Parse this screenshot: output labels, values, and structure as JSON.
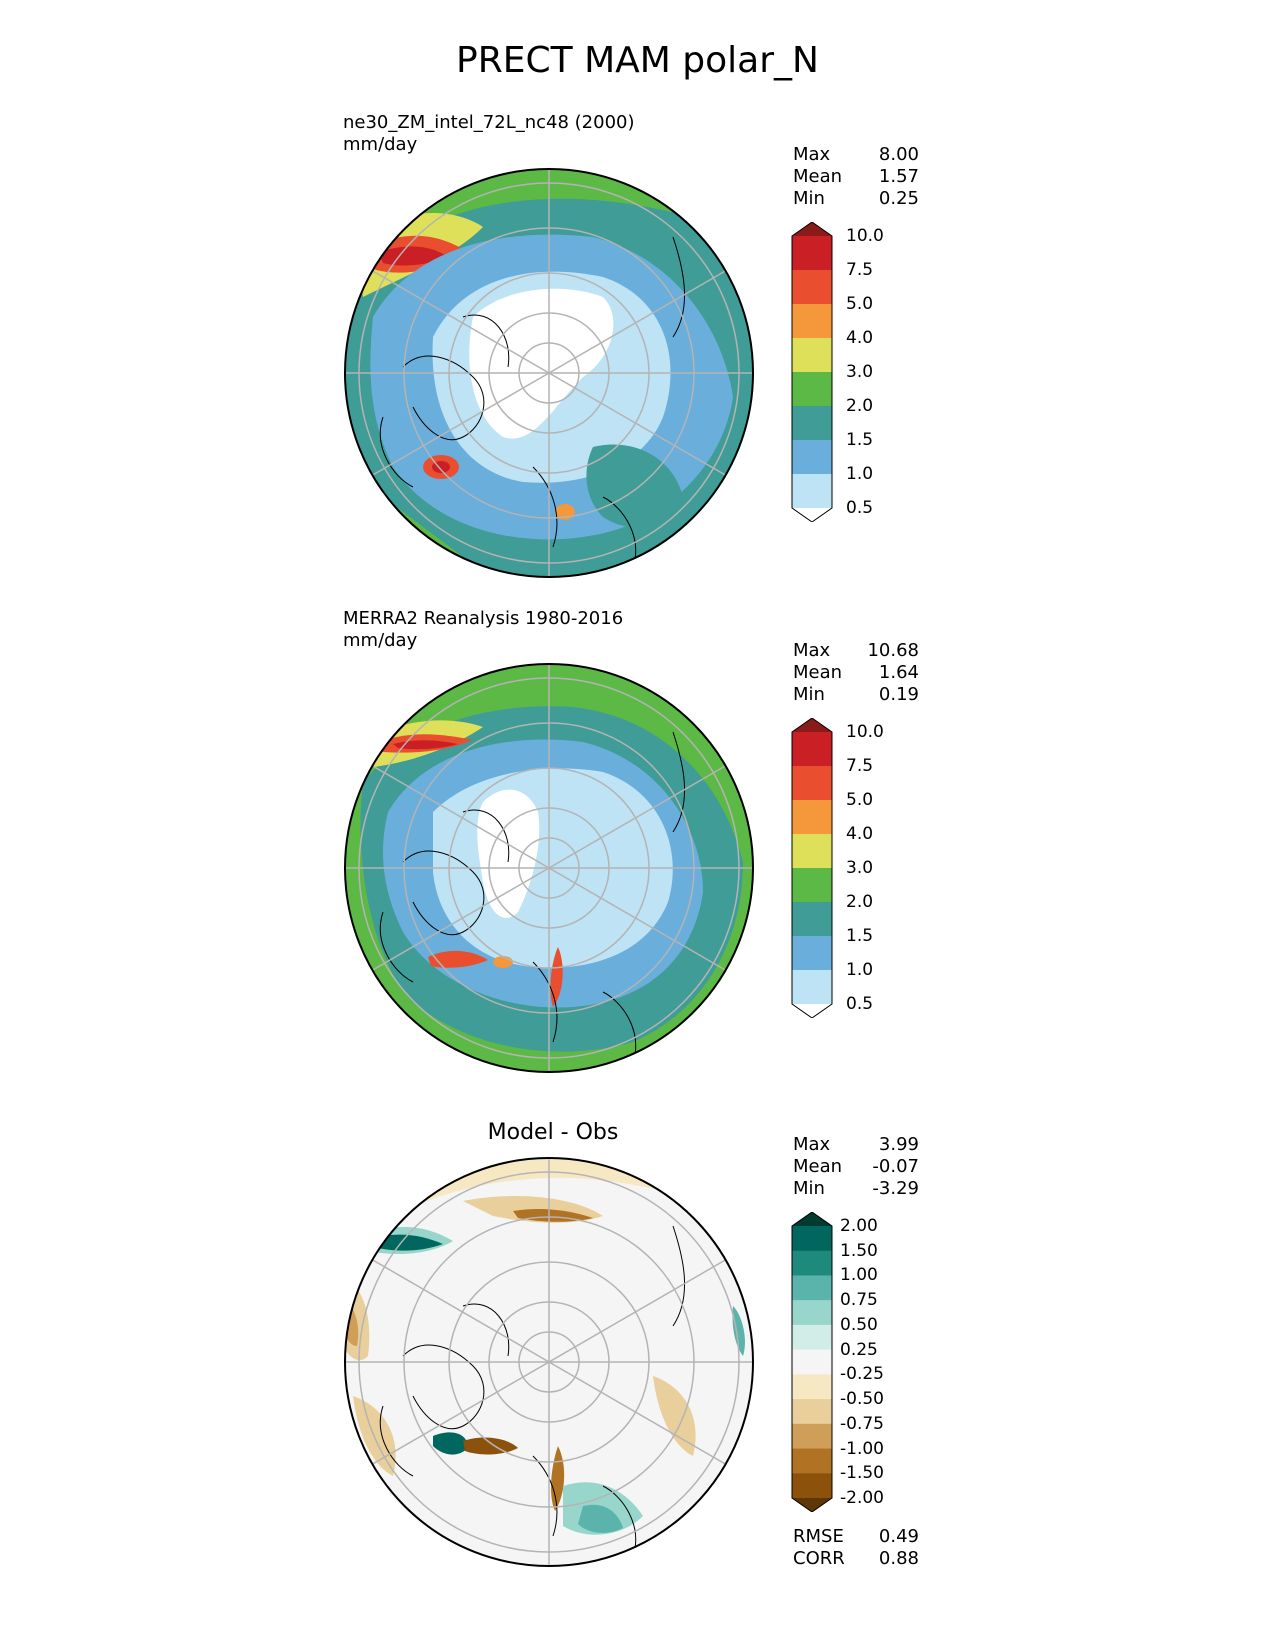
{
  "title": "PRECT MAM polar_N",
  "panels": [
    {
      "id": "test",
      "title_line1": "ne30_ZM_intel_72L_nc48 (2000)",
      "title_line2": "mm/day",
      "stats": [
        {
          "label": "Max",
          "value": "8.00"
        },
        {
          "label": "Mean",
          "value": "1.57"
        },
        {
          "label": "Min",
          "value": "0.25"
        }
      ]
    },
    {
      "id": "ref",
      "title_line1": "MERRA2 Reanalysis 1980-2016",
      "title_line2": "mm/day",
      "stats": [
        {
          "label": "Max",
          "value": "10.68"
        },
        {
          "label": "Mean",
          "value": "1.64"
        },
        {
          "label": "Min",
          "value": "0.19"
        }
      ]
    },
    {
      "id": "diff",
      "title": "Model - Obs",
      "stats": [
        {
          "label": "Max",
          "value": "3.99"
        },
        {
          "label": "Mean",
          "value": "-0.07"
        },
        {
          "label": "Min",
          "value": "-3.29"
        }
      ],
      "metrics": [
        {
          "label": "RMSE",
          "value": "0.49"
        },
        {
          "label": "CORR",
          "value": "0.88"
        }
      ]
    }
  ],
  "precip_colorbar": {
    "ticks": [
      "10.0",
      "7.5",
      "5.0",
      "4.0",
      "3.0",
      "2.0",
      "1.5",
      "1.0",
      "0.5"
    ],
    "colors": [
      "#8b1a1a",
      "#c91f25",
      "#e94f2f",
      "#f5973b",
      "#dfe05a",
      "#5db946",
      "#3f9c97",
      "#6aaedc",
      "#bde3f5",
      "#ffffff"
    ]
  },
  "diff_colorbar": {
    "ticks": [
      "2.00",
      "1.50",
      "1.00",
      "0.75",
      "0.50",
      "0.25",
      "-0.25",
      "-0.50",
      "-0.75",
      "-1.00",
      "-1.50",
      "-2.00"
    ],
    "colors": [
      "#013b30",
      "#01665e",
      "#1e8a7e",
      "#5ab4ac",
      "#98d6cc",
      "#d2ece8",
      "#f5f5f5",
      "#f6e8c3",
      "#e8cf9b",
      "#cf9f5a",
      "#b07223",
      "#8c510a",
      "#5f3608"
    ]
  }
}
